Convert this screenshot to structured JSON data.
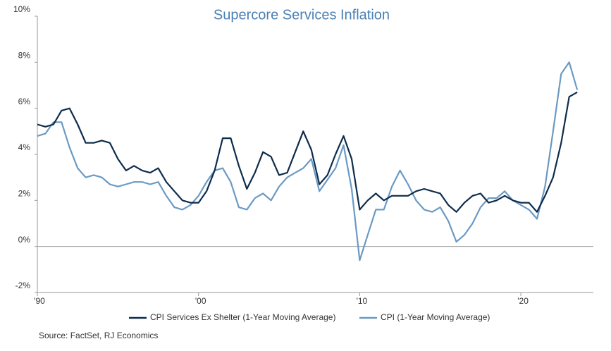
{
  "chart_data": {
    "type": "line",
    "title": "Supercore Services Inflation",
    "source": "Source: FactSet, RJ Economics",
    "x": [
      1990,
      1990.5,
      1991,
      1991.5,
      1992,
      1992.5,
      1993,
      1993.5,
      1994,
      1994.5,
      1995,
      1995.5,
      1996,
      1996.5,
      1997,
      1997.5,
      1998,
      1998.5,
      1999,
      1999.5,
      2000,
      2000.5,
      2001,
      2001.5,
      2002,
      2002.5,
      2003,
      2003.5,
      2004,
      2004.5,
      2005,
      2005.5,
      2006,
      2006.5,
      2007,
      2007.5,
      2008,
      2008.5,
      2009,
      2009.5,
      2010,
      2010.5,
      2011,
      2011.5,
      2012,
      2012.5,
      2013,
      2013.5,
      2014,
      2014.5,
      2015,
      2015.5,
      2016,
      2016.5,
      2017,
      2017.5,
      2018,
      2018.5,
      2019,
      2019.5,
      2020,
      2020.5,
      2021,
      2021.5,
      2022,
      2022.5,
      2023,
      2023.5
    ],
    "series": [
      {
        "name": "CPI Services Ex Shelter (1-Year Moving Average)",
        "color": "#0d2c4b",
        "values": [
          5.3,
          5.2,
          5.3,
          5.9,
          6.0,
          5.3,
          4.5,
          4.5,
          4.6,
          4.5,
          3.8,
          3.3,
          3.5,
          3.3,
          3.2,
          3.4,
          2.8,
          2.4,
          2.0,
          1.9,
          1.9,
          2.4,
          3.3,
          4.7,
          4.7,
          3.5,
          2.5,
          3.2,
          4.1,
          3.9,
          3.1,
          3.2,
          4.1,
          5.0,
          4.2,
          2.7,
          3.1,
          4.0,
          4.8,
          3.8,
          1.6,
          2.0,
          2.3,
          2.0,
          2.2,
          2.2,
          2.2,
          2.4,
          2.5,
          2.4,
          2.3,
          1.8,
          1.5,
          1.9,
          2.2,
          2.3,
          1.9,
          2.0,
          2.2,
          2.0,
          1.9,
          1.9,
          1.5,
          2.2,
          3.0,
          4.5,
          6.5,
          6.7
        ]
      },
      {
        "name": "CPI (1-Year Moving Average)",
        "color": "#6a9ac4",
        "values": [
          4.8,
          4.9,
          5.4,
          5.4,
          4.3,
          3.4,
          3.0,
          3.1,
          3.0,
          2.7,
          2.6,
          2.7,
          2.8,
          2.8,
          2.7,
          2.8,
          2.2,
          1.7,
          1.6,
          1.8,
          2.2,
          2.8,
          3.3,
          3.4,
          2.8,
          1.7,
          1.6,
          2.1,
          2.3,
          2.0,
          2.6,
          3.0,
          3.2,
          3.4,
          3.8,
          2.4,
          2.9,
          3.4,
          4.4,
          2.5,
          -0.6,
          0.5,
          1.6,
          1.6,
          2.6,
          3.3,
          2.7,
          2.0,
          1.6,
          1.5,
          1.7,
          1.1,
          0.2,
          0.5,
          1.0,
          1.7,
          2.1,
          2.1,
          2.4,
          2.0,
          1.8,
          1.6,
          1.2,
          2.6,
          5.0,
          7.5,
          8.0,
          6.8
        ]
      }
    ],
    "xlim": [
      1990,
      2024.5
    ],
    "xticks": [
      {
        "value": 1990,
        "label": "'90"
      },
      {
        "value": 2000,
        "label": "'00"
      },
      {
        "value": 2010,
        "label": "'10"
      },
      {
        "value": 2020,
        "label": "'20"
      }
    ],
    "ylim": [
      -2,
      10
    ],
    "yticks": [
      {
        "value": -2,
        "label": "-2%"
      },
      {
        "value": 0,
        "label": "0%"
      },
      {
        "value": 2,
        "label": "2%"
      },
      {
        "value": 4,
        "label": "4%"
      },
      {
        "value": 6,
        "label": "6%"
      },
      {
        "value": 8,
        "label": "8%"
      },
      {
        "value": 10,
        "label": "10%"
      }
    ],
    "grid": false,
    "legend": "bottom"
  }
}
